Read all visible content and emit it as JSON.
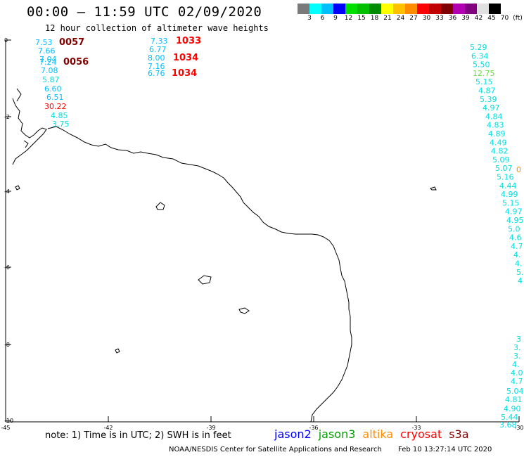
{
  "title": "00:00 – 11:59 UTC 02/09/2020",
  "subtitle": "12 hour collection of altimeter wave heights",
  "colorbar": {
    "colors": [
      "#7a7a7a",
      "#00ffff",
      "#00bfff",
      "#0000ff",
      "#00e000",
      "#00c000",
      "#008c00",
      "#ffff00",
      "#ffc000",
      "#ff8c00",
      "#ff0000",
      "#c00000",
      "#800000",
      "#b000b0",
      "#800080",
      "#e0e0e0",
      "#000000"
    ],
    "labels": [
      "3",
      "6",
      "9",
      "12",
      "15",
      "18",
      "21",
      "24",
      "27",
      "30",
      "33",
      "36",
      "39",
      "42",
      "45",
      "70",
      "(ft)"
    ]
  },
  "axes": {
    "x_ticks": [
      "-45",
      "-42",
      "-39",
      "-36",
      "-33",
      "-30"
    ],
    "y_ticks": [
      "0",
      "-2",
      "-4",
      "-6",
      "-8",
      "-10"
    ]
  },
  "note": "note: 1) Time is in UTC; 2) SWH is in feet",
  "legend": [
    {
      "label": "jason2",
      "color": "#0000ff"
    },
    {
      "label": "jason3",
      "color": "#00a000"
    },
    {
      "label": "altika",
      "color": "#ff8c00"
    },
    {
      "label": "cryosat",
      "color": "#ff0000"
    },
    {
      "label": "s3a",
      "color": "#800000"
    }
  ],
  "credit": "NOAA/NESDIS Center for Satellite Applications and Research",
  "timestamp": "Feb 10 13:27:14 UTC 2020",
  "obs": {
    "left_track": [
      {
        "v": "7.53",
        "c": "#00bfff"
      },
      {
        "v": "7.66",
        "c": "#00bfff"
      },
      {
        "v": "7.04",
        "c": "#00bfff"
      },
      {
        "v": "7.24",
        "c": "#00bfff"
      },
      {
        "v": "7.08",
        "c": "#00bfff"
      },
      {
        "v": "5.87",
        "c": "#00e0e0"
      },
      {
        "v": "6.60",
        "c": "#00bfff"
      },
      {
        "v": "6.51",
        "c": "#00bfff"
      },
      {
        "v": "30.22",
        "c": "#ff0000"
      },
      {
        "v": "4.85",
        "c": "#00e0e0"
      },
      {
        "v": "3.75",
        "c": "#00e0e0"
      }
    ],
    "left_times": [
      {
        "v": "0057",
        "c": "#800000"
      },
      {
        "v": "0056",
        "c": "#800000"
      }
    ],
    "mid_track": [
      {
        "v": "7.33",
        "c": "#00bfff"
      },
      {
        "v": "6.77",
        "c": "#00bfff"
      },
      {
        "v": "8.00",
        "c": "#00bfff"
      },
      {
        "v": "7.16",
        "c": "#00bfff"
      },
      {
        "v": "6.76",
        "c": "#00bfff"
      }
    ],
    "mid_times": [
      {
        "v": "1033",
        "c": "#ff0000"
      },
      {
        "v": "1034",
        "c": "#ff0000"
      },
      {
        "v": "1034",
        "c": "#ff0000"
      }
    ],
    "right_track": [
      {
        "v": "5.29",
        "c": "#00e0e0"
      },
      {
        "v": "6.34",
        "c": "#00e0e0"
      },
      {
        "v": "5.50",
        "c": "#00e0e0"
      },
      {
        "v": "12.75",
        "c": "#66dd44"
      },
      {
        "v": "5.15",
        "c": "#00e0e0"
      },
      {
        "v": "4.87",
        "c": "#00e0e0"
      },
      {
        "v": "5.39",
        "c": "#00e0e0"
      },
      {
        "v": "4.97",
        "c": "#00e0e0"
      },
      {
        "v": "4.84",
        "c": "#00e0e0"
      },
      {
        "v": "4.83",
        "c": "#00e0e0"
      },
      {
        "v": "4.89",
        "c": "#00e0e0"
      },
      {
        "v": "4.49",
        "c": "#00e0e0"
      },
      {
        "v": "4.82",
        "c": "#00e0e0"
      },
      {
        "v": "5.09",
        "c": "#00e0e0"
      },
      {
        "v": "5.07",
        "c": "#00e0e0"
      },
      {
        "v": "5.16",
        "c": "#00e0e0"
      },
      {
        "v": "4.44",
        "c": "#00e0e0"
      },
      {
        "v": "4.99",
        "c": "#00e0e0"
      },
      {
        "v": "5.15",
        "c": "#00e0e0"
      },
      {
        "v": "4.97",
        "c": "#00e0e0"
      },
      {
        "v": "4.95",
        "c": "#00e0e0"
      },
      {
        "v": "5.0",
        "c": "#00e0e0"
      },
      {
        "v": "4.6",
        "c": "#00e0e0"
      },
      {
        "v": "4.7",
        "c": "#00e0e0"
      },
      {
        "v": "4.",
        "c": "#00e0e0"
      },
      {
        "v": "4.",
        "c": "#00e0e0"
      },
      {
        "v": "5.",
        "c": "#00e0e0"
      },
      {
        "v": "4",
        "c": "#00e0e0"
      }
    ],
    "right_track2": [
      {
        "v": "3",
        "c": "#00e0e0"
      },
      {
        "v": "3.",
        "c": "#00e0e0"
      },
      {
        "v": "3.",
        "c": "#00e0e0"
      },
      {
        "v": "4.",
        "c": "#00e0e0"
      },
      {
        "v": "4.0",
        "c": "#00e0e0"
      },
      {
        "v": "4.7",
        "c": "#00e0e0"
      },
      {
        "v": "5.04",
        "c": "#00e0e0"
      },
      {
        "v": "4.81",
        "c": "#00e0e0"
      },
      {
        "v": "4.90",
        "c": "#00e0e0"
      },
      {
        "v": "5.44",
        "c": "#00e0e0"
      },
      {
        "v": "3.68",
        "c": "#00e0e0"
      }
    ],
    "edge": {
      "v": "0",
      "c": "#ff8c00"
    }
  }
}
